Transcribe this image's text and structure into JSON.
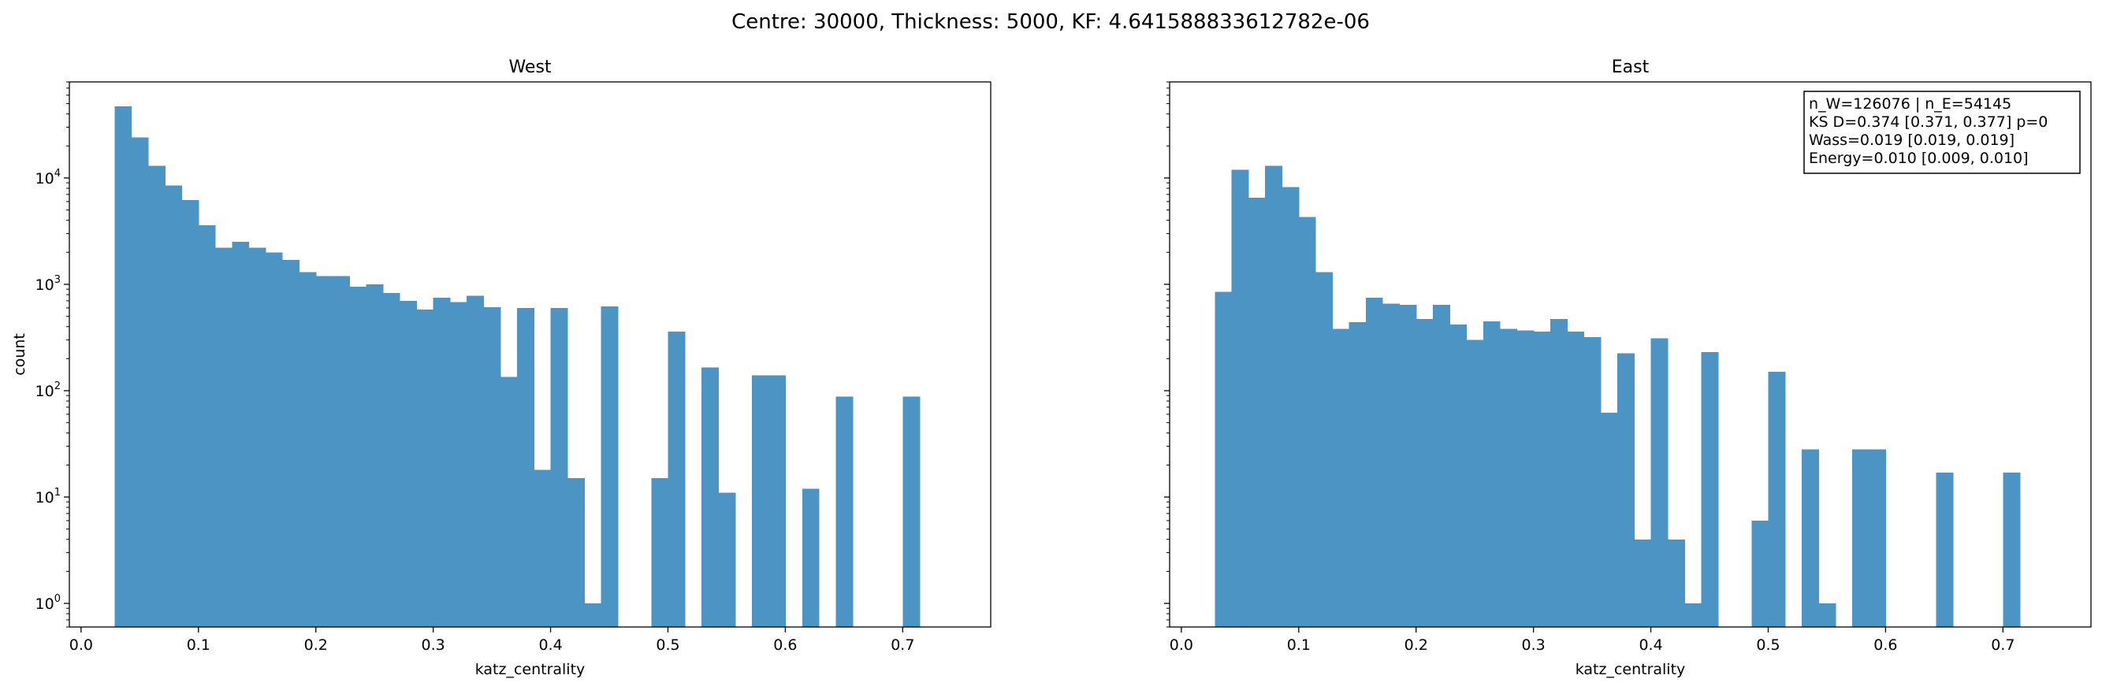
{
  "suptitle": "Centre: 30000, Thickness: 5000, KF: 4.641588833612782e-06",
  "colors": {
    "bar": "#4c94c4",
    "axis": "#000000",
    "background": "#ffffff"
  },
  "chart_data": [
    {
      "type": "bar",
      "title": "West",
      "xlabel": "katz_centrality",
      "ylabel": "count",
      "yscale": "log",
      "xlim": [
        -0.01,
        0.775
      ],
      "ylim": [
        0.6,
        80000
      ],
      "xticks": [
        0.0,
        0.1,
        0.2,
        0.3,
        0.4,
        0.5,
        0.6,
        0.7
      ],
      "xtick_labels": [
        "0.0",
        "0.1",
        "0.2",
        "0.3",
        "0.4",
        "0.5",
        "0.6",
        "0.7"
      ],
      "yticks": [
        1,
        10,
        100,
        1000,
        10000
      ],
      "bin_start": 0.0285,
      "bin_width": 0.01429,
      "values": [
        47000,
        24000,
        13000,
        8500,
        6200,
        3600,
        2200,
        2500,
        2200,
        2000,
        1700,
        1300,
        1200,
        1200,
        950,
        1000,
        830,
        700,
        580,
        750,
        680,
        780,
        610,
        135,
        600,
        18,
        600,
        15,
        1,
        620,
        0,
        0,
        15,
        360,
        0,
        165,
        11,
        0,
        140,
        140,
        0,
        12,
        0,
        88,
        0,
        0,
        0,
        88
      ],
      "grid": false
    },
    {
      "type": "bar",
      "title": "East",
      "xlabel": "katz_centrality",
      "ylabel": "",
      "yscale": "log",
      "xlim": [
        -0.01,
        0.775
      ],
      "ylim": [
        0.6,
        80000
      ],
      "xticks": [
        0.0,
        0.1,
        0.2,
        0.3,
        0.4,
        0.5,
        0.6,
        0.7
      ],
      "xtick_labels": [
        "0.0",
        "0.1",
        "0.2",
        "0.3",
        "0.4",
        "0.5",
        "0.6",
        "0.7"
      ],
      "yticks": [
        1,
        10,
        100,
        1000,
        10000
      ],
      "show_ytick_labels": false,
      "bin_start": 0.0285,
      "bin_width": 0.01429,
      "values": [
        850,
        12000,
        6500,
        13000,
        8200,
        4300,
        1300,
        380,
        440,
        750,
        660,
        640,
        470,
        640,
        420,
        300,
        450,
        380,
        370,
        360,
        470,
        360,
        320,
        62,
        225,
        4,
        310,
        4,
        1,
        230,
        0,
        0,
        6,
        150,
        0,
        28,
        1,
        0,
        28,
        28,
        0,
        0,
        0,
        17,
        0,
        0,
        0,
        17
      ],
      "annotation": [
        "n_W=126076 | n_E=54145",
        "KS D=0.374 [0.371, 0.377]  p=0",
        "Wass=0.019 [0.019, 0.019]",
        "Energy=0.010 [0.009, 0.010]"
      ],
      "annotation_position": "top-right",
      "grid": false
    }
  ]
}
